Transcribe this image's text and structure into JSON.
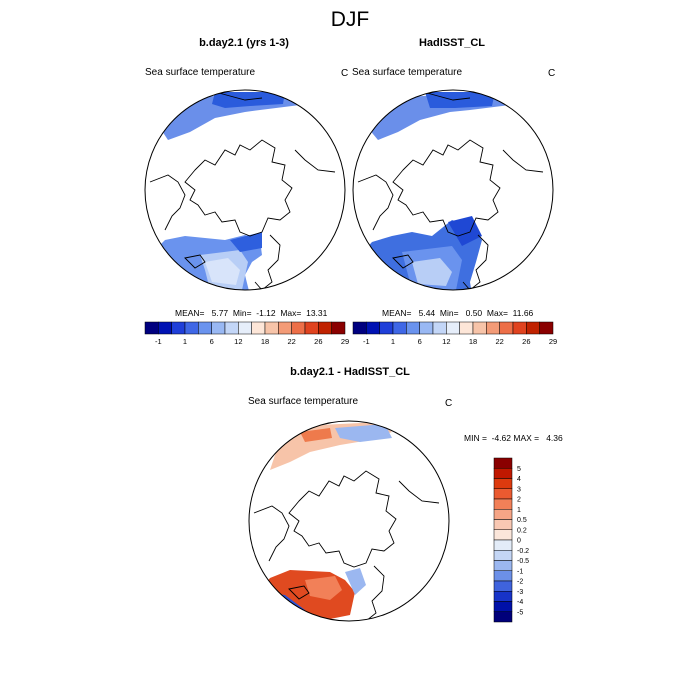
{
  "figure": {
    "title": "DJF"
  },
  "panels": {
    "model": {
      "title": "b.day2.1 (yrs 1-3)",
      "variable": "Sea surface temperature",
      "units": "C",
      "stats": {
        "mean": 5.77,
        "min": -1.12,
        "max": 13.31
      },
      "stats_text": "MEAN=   5.77  Min=  -1.12  Max=  13.31"
    },
    "obs": {
      "title": "HadISST_CL",
      "variable": "Sea surface temperature",
      "units": "C",
      "stats": {
        "mean": 5.44,
        "min": 0.5,
        "max": 11.66
      },
      "stats_text": "MEAN=   5.44  Min=   0.50  Max=  11.66"
    },
    "diff": {
      "title": "b.day2.1 - HadISST_CL",
      "variable": "Sea surface temperature",
      "units": "C",
      "stats": {
        "min": -4.62,
        "max": 4.36
      },
      "stats_text": "MIN =  -4.62 MAX =   4.36"
    }
  },
  "colorbars": {
    "absolute": {
      "orientation": "horizontal",
      "tick_labels": [
        "-1",
        "1",
        "6",
        "12",
        "18",
        "22",
        "26",
        "29"
      ],
      "colors": [
        "#00007f",
        "#0012b3",
        "#1f3fd9",
        "#3f67e6",
        "#6a93ee",
        "#99b8f3",
        "#c3d6f7",
        "#e6eefa",
        "#fde6d8",
        "#f7c4a9",
        "#f39b77",
        "#ed6f48",
        "#e0431f",
        "#c02200",
        "#8a0000"
      ]
    },
    "difference": {
      "orientation": "vertical",
      "tick_labels": [
        "5",
        "4",
        "3",
        "2",
        "1",
        "0.5",
        "0.2",
        "0",
        "-0.2",
        "-0.5",
        "-1",
        "-2",
        "-3",
        "-4",
        "-5"
      ],
      "colors": [
        "#8a0000",
        "#c01800",
        "#dd3a0e",
        "#ea5a30",
        "#f28058",
        "#f6a586",
        "#f9c8b3",
        "#fbe6da",
        "#e3ecf8",
        "#c4d6f5",
        "#9bb7f0",
        "#6c90e8",
        "#3f63dd",
        "#1733c8",
        "#0010a8",
        "#00007a"
      ]
    }
  }
}
